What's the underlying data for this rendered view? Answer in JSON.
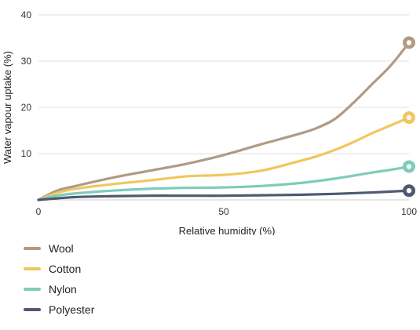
{
  "chart_data": {
    "type": "line",
    "xlabel": "Relative humidity (%)",
    "ylabel": "Water vapour uptake (%)",
    "xlim": [
      0,
      100
    ],
    "ylim": [
      0,
      40
    ],
    "xticks": [
      0,
      50,
      100
    ],
    "yticks": [
      10,
      20,
      30,
      40
    ],
    "grid": "horizontal",
    "legend_position": "bottom-left",
    "series": [
      {
        "name": "Wool",
        "color": "#b09a84",
        "x": [
          0,
          5,
          10,
          20,
          30,
          40,
          50,
          60,
          70,
          75,
          80,
          85,
          90,
          95,
          100
        ],
        "y": [
          0,
          2,
          3,
          4.8,
          6.3,
          7.8,
          9.7,
          12,
          14.2,
          15.5,
          17.5,
          21,
          25,
          29,
          34
        ]
      },
      {
        "name": "Cotton",
        "color": "#f0c75e",
        "x": [
          0,
          5,
          10,
          20,
          30,
          40,
          50,
          60,
          70,
          75,
          80,
          85,
          90,
          95,
          100
        ],
        "y": [
          0,
          1.5,
          2.4,
          3.4,
          4.2,
          5.1,
          5.4,
          6.3,
          8.3,
          9.4,
          10.8,
          12.5,
          14.4,
          16.1,
          17.8
        ]
      },
      {
        "name": "Nylon",
        "color": "#7fcbbb",
        "x": [
          0,
          5,
          10,
          20,
          30,
          40,
          50,
          60,
          70,
          80,
          90,
          95,
          100
        ],
        "y": [
          0,
          0.9,
          1.4,
          2.0,
          2.4,
          2.6,
          2.7,
          3.0,
          3.6,
          4.6,
          5.9,
          6.5,
          7.2
        ]
      },
      {
        "name": "Polyester",
        "color": "#4f5972",
        "x": [
          0,
          10,
          20,
          30,
          40,
          50,
          60,
          70,
          80,
          90,
          100
        ],
        "y": [
          0,
          0.6,
          0.8,
          0.9,
          0.9,
          0.9,
          1.0,
          1.1,
          1.3,
          1.6,
          2.0
        ]
      }
    ]
  }
}
